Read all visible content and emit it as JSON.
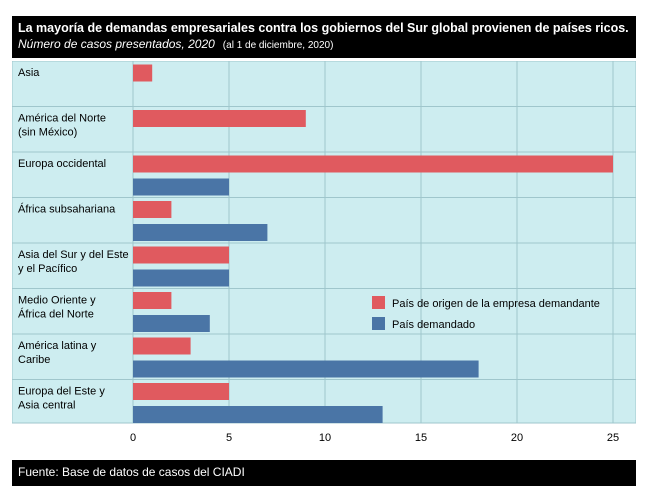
{
  "header": {
    "title": "La mayoría de demandas empresariales contra los gobiernos del Sur global provienen de países ricos.",
    "subtitle": "Número de casos presentados, 2020",
    "date_note": "(al 1 de diciembre, 2020)"
  },
  "footer": {
    "source": "Fuente: Base de datos de casos del CIADI"
  },
  "colors": {
    "home": "#e05a5f",
    "respondent": "#4a75a6",
    "panel": "#cdedf0",
    "grid": "#9fc6cc"
  },
  "chart_data": {
    "type": "bar",
    "orientation": "horizontal",
    "categories": [
      [
        "Asia"
      ],
      [
        "América del Norte",
        "(sin México)"
      ],
      [
        "Europa occidental"
      ],
      [
        "África subsahariana"
      ],
      [
        "Asia del Sur y del Este",
        "y el Pacífico"
      ],
      [
        "Medio Oriente y",
        "África del Norte"
      ],
      [
        "América latina y",
        "Caribe"
      ],
      [
        "Europa del Este y",
        "Asia central"
      ]
    ],
    "series": [
      {
        "name": "País de origen de la empresa demandante",
        "values": [
          1,
          9,
          25,
          2,
          5,
          2,
          3,
          5
        ]
      },
      {
        "name": "País demandado",
        "values": [
          null,
          null,
          5,
          7,
          5,
          4,
          18,
          13
        ]
      }
    ],
    "xlim": [
      0,
      25
    ],
    "xticks": [
      0,
      5,
      10,
      15,
      20,
      25
    ],
    "grid": true,
    "legend_position": "lower-right"
  }
}
